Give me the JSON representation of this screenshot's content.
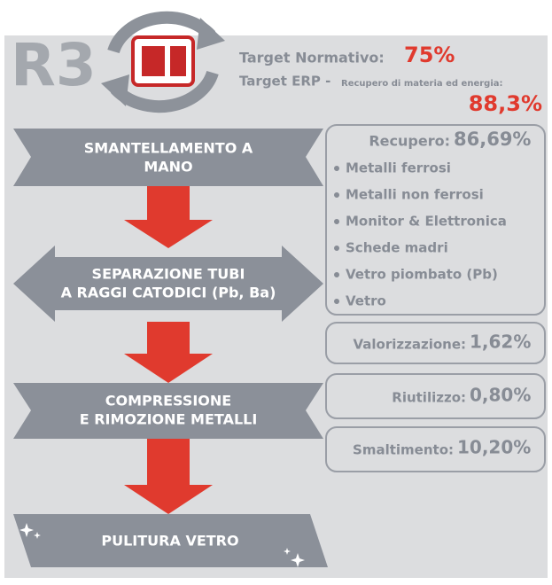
{
  "header": {
    "label": "R3",
    "target_normativo": {
      "label": "Target Normativo:",
      "value": "75%"
    },
    "target_erp": {
      "label": "Target ERP -",
      "sublabel": "Recupero di materia ed energia:",
      "value": "88,3%"
    }
  },
  "steps": [
    {
      "lines": [
        "SMANTELLAMENTO A",
        "MANO"
      ]
    },
    {
      "lines": [
        "SEPARAZIONE TUBI",
        "A RAGGI CATODICI (Pb, Ba)"
      ]
    },
    {
      "lines": [
        "COMPRESSIONE",
        "E RIMOZIONE METALLI"
      ]
    },
    {
      "lines": [
        "PULITURA VETRO"
      ]
    }
  ],
  "recupero": {
    "label": "Recupero:",
    "value": "86,69%",
    "items": [
      "Metalli ferrosi",
      "Metalli non ferrosi",
      "Monitor & Elettronica",
      "Schede madri",
      "Vetro piombato (Pb)",
      "Vetro"
    ]
  },
  "valorizzazione": {
    "label": "Valorizzazione:",
    "value": "1,62%"
  },
  "riutilizzo": {
    "label": "Riutilizzo:",
    "value": "0,80%"
  },
  "smaltimento": {
    "label": "Smaltimento:",
    "value": "10,20%"
  }
}
